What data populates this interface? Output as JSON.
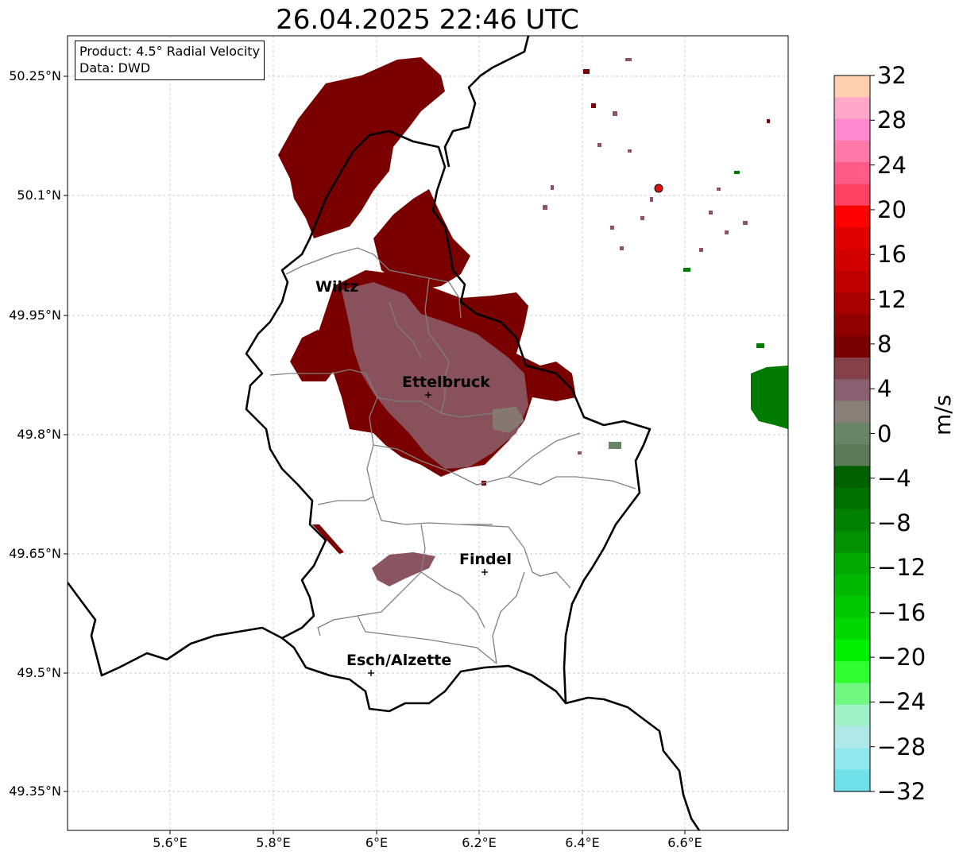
{
  "title": "26.04.2025 22:46 UTC",
  "info": {
    "product": "Product: 4.5° Radial Velocity",
    "data": "Data: DWD"
  },
  "cities": [
    {
      "name": "Wiltz"
    },
    {
      "name": "Ettelbruck"
    },
    {
      "name": "Findel"
    },
    {
      "name": "Esch/Alzette"
    }
  ],
  "axes": {
    "lat_ticks": [
      "50.25°N",
      "50.1°N",
      "49.95°N",
      "49.8°N",
      "49.65°N",
      "49.5°N",
      "49.35°N"
    ],
    "lon_ticks": [
      "5.6°E",
      "5.8°E",
      "6°E",
      "6.2°E",
      "6.4°E",
      "6.6°E"
    ],
    "grid": true
  },
  "colorbar": {
    "unit": "m/s",
    "ticks": [
      "32",
      "28",
      "24",
      "20",
      "16",
      "12",
      "8",
      "4",
      "0",
      "−4",
      "−8",
      "−12",
      "−16",
      "−20",
      "−24",
      "−28",
      "−32"
    ],
    "colors_top_to_bottom": [
      "#ffd0b0",
      "#ffa8c8",
      "#ff88d0",
      "#ff78a8",
      "#ff5a88",
      "#ff4060",
      "#ff0000",
      "#e00000",
      "#d20000",
      "#c00000",
      "#a80000",
      "#900000",
      "#780000",
      "#844048",
      "#886070",
      "#888078",
      "#6a8468",
      "#5a7a58",
      "#006000",
      "#007000",
      "#008000",
      "#009000",
      "#00a800",
      "#00b800",
      "#00c800",
      "#00d800",
      "#00f000",
      "#30ff30",
      "#70f880",
      "#a0f0c8",
      "#b0e8e8",
      "#90e8ec",
      "#70e0e8"
    ],
    "range": [
      -32,
      32
    ]
  },
  "colors": {
    "high_velocity": "#7a0000",
    "mid_velocity": "#8a5560",
    "negative_velocity": "#007a00",
    "radar_marker": "#e01010"
  }
}
